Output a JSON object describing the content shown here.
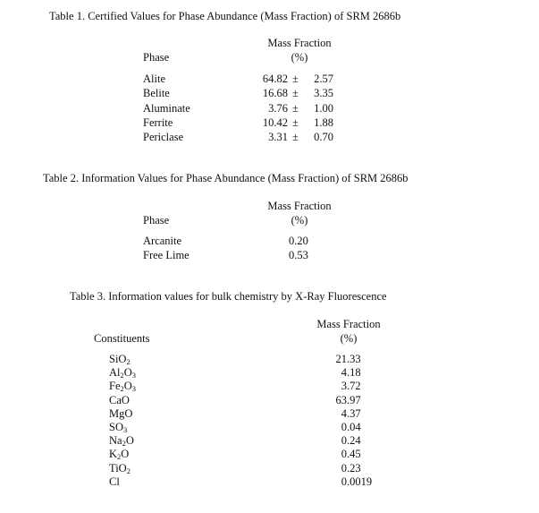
{
  "table1": {
    "title": "Table 1.  Certified Values for Phase Abundance (Mass Fraction) of SRM 2686b",
    "col_phase": "Phase",
    "col_mf": "Mass Fraction",
    "col_unit": "(%)",
    "pm": "±",
    "rows": [
      {
        "phase": "Alite",
        "value": "64.82",
        "unc": "2.57"
      },
      {
        "phase": "Belite",
        "value": "16.68",
        "unc": "3.35"
      },
      {
        "phase": "Aluminate",
        "value": "3.76",
        "unc": "1.00"
      },
      {
        "phase": "Ferrite",
        "value": "10.42",
        "unc": "1.88"
      },
      {
        "phase": "Periclase",
        "value": "3.31",
        "unc": "0.70"
      }
    ]
  },
  "table2": {
    "title": "Table 2.  Information Values for Phase Abundance (Mass Fraction) of SRM 2686b",
    "col_phase": "Phase",
    "col_mf": "Mass Fraction",
    "col_unit": "(%)",
    "rows": [
      {
        "phase": "Arcanite",
        "value": "0.20"
      },
      {
        "phase": "Free Lime",
        "value": "0.53"
      }
    ]
  },
  "table3": {
    "title": "Table 3.  Information values for bulk chemistry by X-Ray Fluorescence",
    "col_const": "Constituents",
    "col_mf": "Mass Fraction",
    "col_unit": "(%)",
    "rows": [
      {
        "name": "SiO",
        "sub": "2",
        "tail": "",
        "int": "21",
        "frac": ".33"
      },
      {
        "name": "Al",
        "sub": "2",
        "tail": "O",
        "sub2": "3",
        "int": "4",
        "frac": ".18"
      },
      {
        "name": "Fe",
        "sub": "2",
        "tail": "O",
        "sub2": "3",
        "int": "3",
        "frac": ".72"
      },
      {
        "name": "CaO",
        "sub": "",
        "tail": "",
        "int": "63",
        "frac": ".97"
      },
      {
        "name": "MgO",
        "sub": "",
        "tail": "",
        "int": "4",
        "frac": ".37"
      },
      {
        "name": "SO",
        "sub": "3",
        "tail": "",
        "int": "0",
        "frac": ".04"
      },
      {
        "name": "Na",
        "sub": "2",
        "tail": "O",
        "int": "0",
        "frac": ".24"
      },
      {
        "name": "K",
        "sub": "2",
        "tail": "O",
        "int": "0",
        "frac": ".45"
      },
      {
        "name": "TiO",
        "sub": "2",
        "tail": "",
        "int": "0",
        "frac": ".23"
      },
      {
        "name": "Cl",
        "sub": "",
        "tail": "",
        "int": "0",
        "frac": ".0019"
      }
    ]
  }
}
